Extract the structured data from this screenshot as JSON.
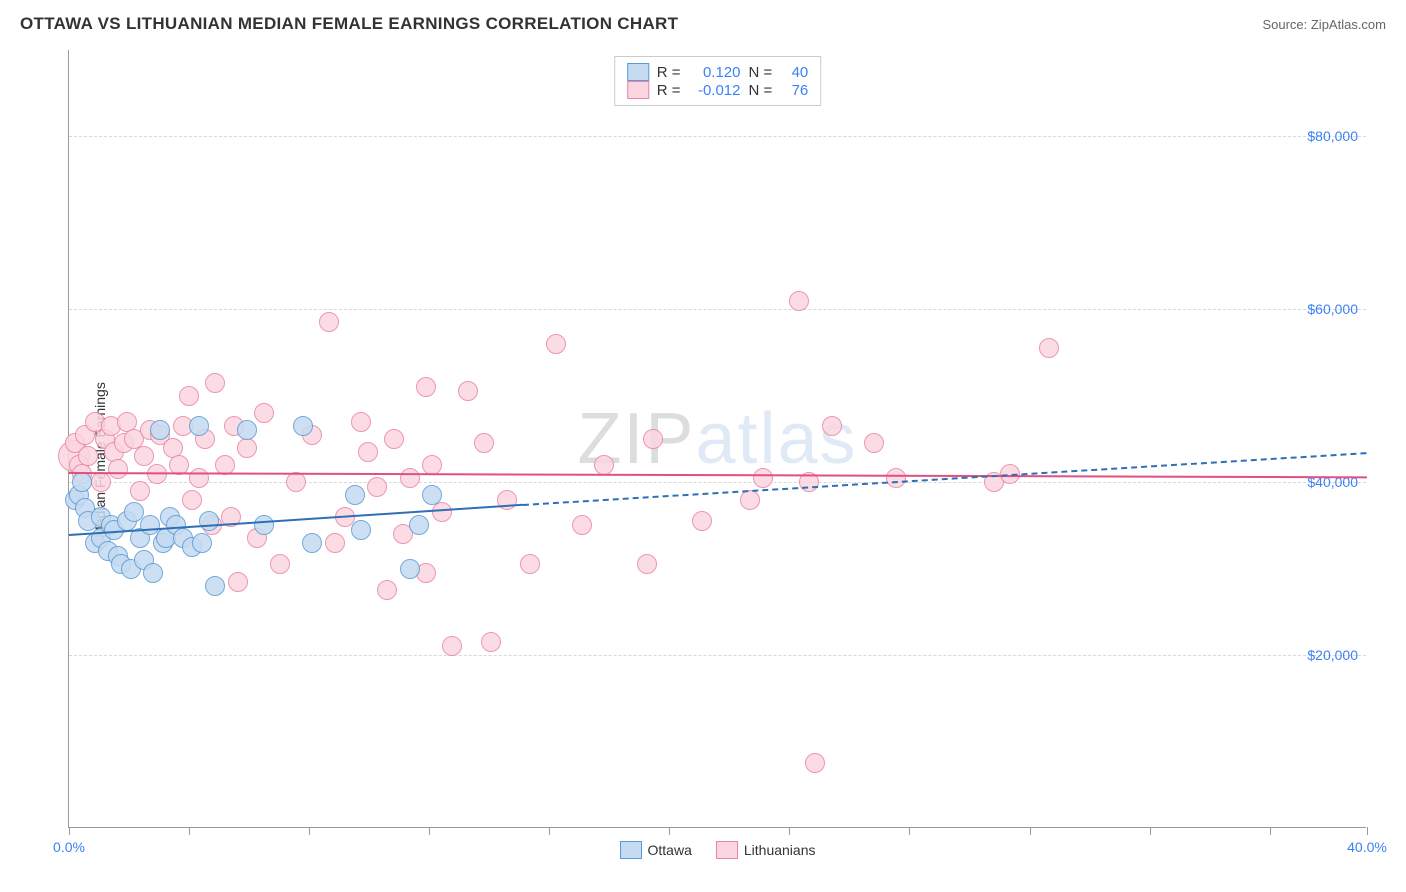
{
  "header": {
    "title": "OTTAWA VS LITHUANIAN MEDIAN FEMALE EARNINGS CORRELATION CHART",
    "source_prefix": "Source: ",
    "source": "ZipAtlas.com"
  },
  "watermark": {
    "text_a": "ZIP",
    "text_b": "atlas",
    "color_a": "#9aa0a6",
    "color_b": "#a9c5e8",
    "opacity": 0.35,
    "fontsize": 72
  },
  "chart": {
    "type": "scatter",
    "ylabel": "Median Female Earnings",
    "xlim": [
      0,
      40
    ],
    "ylim": [
      0,
      90000
    ],
    "xtick_positions": [
      0,
      3.7,
      7.4,
      11.1,
      14.8,
      18.5,
      22.2,
      25.9,
      29.6,
      33.3,
      37.0,
      40.0
    ],
    "xtick_labels": {
      "0": "0.0%",
      "40": "40.0%"
    },
    "ytick_positions": [
      20000,
      40000,
      60000,
      80000
    ],
    "ytick_labels": [
      "$20,000",
      "$40,000",
      "$60,000",
      "$80,000"
    ],
    "grid_color": "#d8d8d8",
    "background_color": "#ffffff",
    "axis_color": "#999999",
    "label_color": "#3b82f6",
    "marker_radius": 10,
    "marker_radius_large": 16,
    "series": {
      "ottawa": {
        "label": "Ottawa",
        "fill": "#c5dbf2",
        "stroke": "#5b9bd5",
        "trend_color": "#2f6fb5",
        "R": "0.120",
        "N": "40",
        "trend": {
          "x1": 0.0,
          "y1": 34000,
          "x2": 14.0,
          "y2": 37500,
          "x2_dash": 40.0,
          "y2_dash": 43500
        },
        "points": [
          [
            0.2,
            38000
          ],
          [
            0.3,
            38500
          ],
          [
            0.4,
            40000
          ],
          [
            0.5,
            37000
          ],
          [
            0.6,
            35500
          ],
          [
            0.8,
            33000
          ],
          [
            1.0,
            36000
          ],
          [
            1.0,
            33500
          ],
          [
            1.2,
            32000
          ],
          [
            1.3,
            35000
          ],
          [
            1.4,
            34500
          ],
          [
            1.5,
            31500
          ],
          [
            1.6,
            30500
          ],
          [
            1.8,
            35500
          ],
          [
            1.9,
            30000
          ],
          [
            2.0,
            36500
          ],
          [
            2.2,
            33500
          ],
          [
            2.3,
            31000
          ],
          [
            2.5,
            35000
          ],
          [
            2.6,
            29500
          ],
          [
            2.8,
            46000
          ],
          [
            2.9,
            33000
          ],
          [
            3.0,
            33500
          ],
          [
            3.1,
            36000
          ],
          [
            3.3,
            35000
          ],
          [
            3.5,
            33500
          ],
          [
            3.8,
            32500
          ],
          [
            4.0,
            46500
          ],
          [
            4.1,
            33000
          ],
          [
            4.3,
            35500
          ],
          [
            4.5,
            28000
          ],
          [
            5.5,
            46000
          ],
          [
            6.0,
            35000
          ],
          [
            7.5,
            33000
          ],
          [
            8.8,
            38500
          ],
          [
            9.0,
            34500
          ],
          [
            10.5,
            30000
          ],
          [
            10.8,
            35000
          ],
          [
            11.2,
            38500
          ],
          [
            7.2,
            46500
          ]
        ]
      },
      "lithuanians": {
        "label": "Lithuanians",
        "fill": "#fbd5e0",
        "stroke": "#e886a5",
        "trend_color": "#e15083",
        "R": "-0.012",
        "N": "76",
        "trend": {
          "x1": 0.0,
          "y1": 41200,
          "x2": 40.0,
          "y2": 40700
        },
        "points": [
          [
            0.2,
            44500
          ],
          [
            0.3,
            42000
          ],
          [
            0.4,
            41000
          ],
          [
            0.5,
            45500
          ],
          [
            0.6,
            43000
          ],
          [
            0.8,
            47000
          ],
          [
            1.0,
            40000
          ],
          [
            1.1,
            45000
          ],
          [
            1.3,
            46500
          ],
          [
            1.4,
            43500
          ],
          [
            1.5,
            41500
          ],
          [
            1.7,
            44500
          ],
          [
            1.8,
            47000
          ],
          [
            2.0,
            45000
          ],
          [
            2.2,
            39000
          ],
          [
            2.3,
            43000
          ],
          [
            2.5,
            46000
          ],
          [
            2.7,
            41000
          ],
          [
            2.8,
            45500
          ],
          [
            3.0,
            33500
          ],
          [
            3.2,
            44000
          ],
          [
            3.4,
            42000
          ],
          [
            3.5,
            46500
          ],
          [
            3.7,
            50000
          ],
          [
            3.8,
            38000
          ],
          [
            4.0,
            40500
          ],
          [
            4.2,
            45000
          ],
          [
            4.4,
            35000
          ],
          [
            4.5,
            51500
          ],
          [
            4.8,
            42000
          ],
          [
            5.0,
            36000
          ],
          [
            5.2,
            28500
          ],
          [
            5.5,
            44000
          ],
          [
            5.8,
            33500
          ],
          [
            6.0,
            48000
          ],
          [
            5.1,
            46500
          ],
          [
            6.5,
            30500
          ],
          [
            7.0,
            40000
          ],
          [
            7.5,
            45500
          ],
          [
            8.0,
            58500
          ],
          [
            8.2,
            33000
          ],
          [
            8.5,
            36000
          ],
          [
            9.0,
            47000
          ],
          [
            9.2,
            43500
          ],
          [
            9.5,
            39500
          ],
          [
            9.8,
            27500
          ],
          [
            10.0,
            45000
          ],
          [
            10.3,
            34000
          ],
          [
            10.5,
            40500
          ],
          [
            11.0,
            51000
          ],
          [
            11.2,
            42000
          ],
          [
            11.5,
            36500
          ],
          [
            11.8,
            21000
          ],
          [
            12.3,
            50500
          ],
          [
            12.8,
            44500
          ],
          [
            13.0,
            21500
          ],
          [
            13.5,
            38000
          ],
          [
            14.2,
            30500
          ],
          [
            15.0,
            56000
          ],
          [
            15.8,
            35000
          ],
          [
            16.5,
            42000
          ],
          [
            17.8,
            30500
          ],
          [
            18.0,
            45000
          ],
          [
            19.5,
            35500
          ],
          [
            21.0,
            38000
          ],
          [
            21.4,
            40500
          ],
          [
            22.5,
            61000
          ],
          [
            22.8,
            40000
          ],
          [
            23.5,
            46500
          ],
          [
            24.8,
            44500
          ],
          [
            25.5,
            40500
          ],
          [
            28.5,
            40000
          ],
          [
            29.0,
            41000
          ],
          [
            30.2,
            55500
          ],
          [
            23.0,
            7500
          ],
          [
            11.0,
            29500
          ]
        ],
        "large_points": [
          [
            0.15,
            43000
          ]
        ]
      }
    }
  },
  "r_legend": {
    "r_label": "R =",
    "n_label": "N ="
  }
}
